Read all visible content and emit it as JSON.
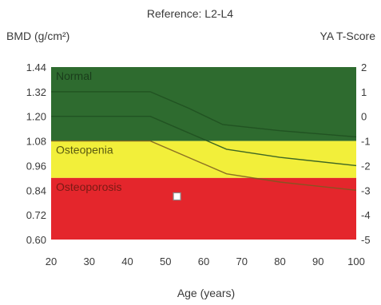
{
  "chart_data": {
    "type": "area",
    "title": "Reference: L2-L4",
    "ylabel": "BMD (g/cm²)",
    "y2label": "YA T-Score",
    "xlabel": "Age (years)",
    "xlim": [
      20,
      100
    ],
    "ylim": [
      0.6,
      1.44
    ],
    "x_ticks": [
      20,
      30,
      40,
      50,
      60,
      70,
      80,
      90,
      100
    ],
    "x_tick_labels": [
      "20",
      "30",
      "40",
      "50",
      "60",
      "70",
      "80",
      "90",
      "100"
    ],
    "y_ticks": [
      0.6,
      0.72,
      0.84,
      0.96,
      1.08,
      1.2,
      1.32,
      1.44
    ],
    "y_tick_labels": [
      "0.60",
      "0.72",
      "0.84",
      "0.96",
      "1.08",
      "1.20",
      "1.32",
      "1.44"
    ],
    "y2_ticks": [
      {
        "value": 2,
        "label": "2"
      },
      {
        "value": 1,
        "label": "1"
      },
      {
        "value": 0,
        "label": "0"
      },
      {
        "value": -1,
        "label": "-1"
      },
      {
        "value": -2,
        "label": "-2"
      },
      {
        "value": -3,
        "label": "-3"
      },
      {
        "value": -4,
        "label": "-4"
      },
      {
        "value": -5,
        "label": "-5"
      }
    ],
    "y2_bmd_at_zero": 1.2,
    "y2_bmd_per_unit": 0.12,
    "zones": [
      {
        "name": "Normal",
        "from": 1.08,
        "to": 1.44,
        "color": "#2e6b2f"
      },
      {
        "name": "Osteopenia",
        "from": 0.9,
        "to": 1.08,
        "color": "#f2ef3a"
      },
      {
        "name": "Osteoporosis",
        "from": 0.6,
        "to": 0.9,
        "color": "#e4262c"
      }
    ],
    "reference_curves": [
      {
        "points": [
          [
            20,
            1.32
          ],
          [
            46,
            1.32
          ],
          [
            56,
            1.24
          ],
          [
            65,
            1.16
          ],
          [
            80,
            1.13
          ],
          [
            100,
            1.1
          ]
        ],
        "color": "#1f4f20"
      },
      {
        "points": [
          [
            20,
            1.2
          ],
          [
            46,
            1.2
          ],
          [
            56,
            1.12
          ],
          [
            66,
            1.04
          ],
          [
            80,
            1.0
          ],
          [
            100,
            0.96
          ]
        ],
        "color": "#1f4f20"
      },
      {
        "points": [
          [
            20,
            1.08
          ],
          [
            46,
            1.08
          ],
          [
            56,
            1.0
          ],
          [
            66,
            0.92
          ],
          [
            80,
            0.88
          ],
          [
            100,
            0.84
          ]
        ],
        "color": "#7a5a20"
      }
    ],
    "patient_point": {
      "x": 53,
      "y": 0.81
    },
    "grid": false
  }
}
